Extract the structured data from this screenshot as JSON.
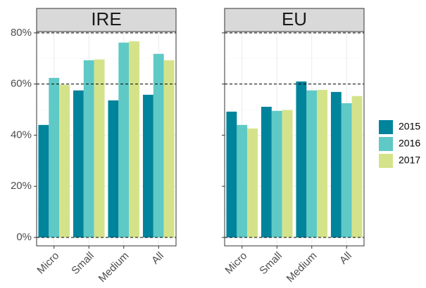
{
  "chart_data": [
    {
      "type": "bar",
      "title": "IRE",
      "categories": [
        "Micro",
        "Small",
        "Medium",
        "All"
      ],
      "series": [
        {
          "name": "2015",
          "color": "#00849c",
          "values": [
            44.0,
            57.5,
            53.6,
            55.8
          ]
        },
        {
          "name": "2016",
          "color": "#5fc9c6",
          "values": [
            62.4,
            69.3,
            76.2,
            71.8
          ]
        },
        {
          "name": "2017",
          "color": "#d4e38a",
          "values": [
            59.7,
            69.6,
            76.7,
            69.3
          ]
        }
      ],
      "ylim": [
        -3.3,
        80.5
      ],
      "yticks": [
        {
          "value": 0,
          "label": "0%"
        },
        {
          "value": 20,
          "label": "20%"
        },
        {
          "value": 40,
          "label": "40%"
        },
        {
          "value": 60,
          "label": "60%"
        },
        {
          "value": 80,
          "label": "80%"
        }
      ],
      "reference_lines": [
        0,
        60,
        80
      ],
      "grid": true,
      "legend": "right"
    },
    {
      "type": "bar",
      "title": "EU",
      "categories": [
        "Micro",
        "Small",
        "Medium",
        "All"
      ],
      "series": [
        {
          "name": "2015",
          "color": "#00849c",
          "values": [
            49.2,
            51.1,
            61.0,
            56.9
          ]
        },
        {
          "name": "2016",
          "color": "#5fc9c6",
          "values": [
            44.0,
            49.5,
            57.5,
            52.5
          ]
        },
        {
          "name": "2017",
          "color": "#d4e38a",
          "values": [
            42.6,
            49.8,
            57.7,
            55.3
          ]
        }
      ],
      "ylim": [
        -3.3,
        80.5
      ],
      "yticks": [
        {
          "value": 0,
          "label": "0%"
        },
        {
          "value": 20,
          "label": "20%"
        },
        {
          "value": 40,
          "label": "40%"
        },
        {
          "value": 60,
          "label": "60%"
        },
        {
          "value": 80,
          "label": "80%"
        }
      ],
      "reference_lines": [
        0,
        60,
        80
      ],
      "grid": true
    }
  ]
}
